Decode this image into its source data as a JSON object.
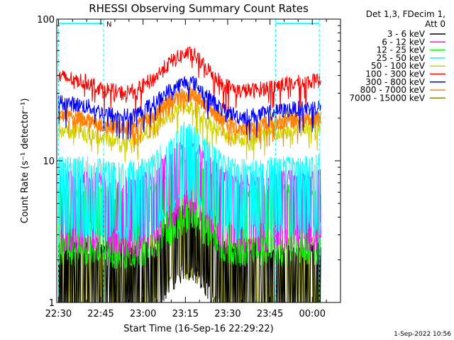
{
  "chart_data": {
    "type": "line",
    "title": "RHESSI Observing Summary Count Rates",
    "xlabel": "Start Time (16-Sep-16 22:29:22)",
    "ylabel": "Count Rate (s⁻¹ detector⁻¹)",
    "x_tick_labels": [
      "22:30",
      "22:45",
      "23:00",
      "23:15",
      "23:30",
      "23:45",
      "00:00"
    ],
    "x_tick_minutes": [
      0,
      15,
      30,
      45,
      60,
      75,
      90
    ],
    "x_range_minutes": [
      -0.6,
      100
    ],
    "y_scale": "log",
    "ylim": [
      1,
      100
    ],
    "y_tick_labels": [
      "1",
      "10",
      "100"
    ],
    "y_tick_values": [
      1,
      10,
      100
    ],
    "legend": {
      "header": [
        "Det 1,3, FDecim 1,",
        "Att 0"
      ],
      "placement": "top-right outside"
    },
    "series": [
      {
        "name": "3 - 6 keV",
        "color": "#000000",
        "t": [
          0,
          6,
          11,
          15,
          22,
          28,
          34,
          40,
          45,
          48,
          52,
          58,
          64,
          70,
          76,
          82,
          88,
          93
        ],
        "values": [
          1.5,
          1.5,
          1.5,
          1.5,
          1.5,
          1.5,
          1.5,
          2.5,
          3.0,
          3.0,
          2.3,
          1.5,
          1.5,
          1.5,
          1.5,
          1.5,
          1.5,
          1.5
        ]
      },
      {
        "name": "6 - 12 keV",
        "color": "#ff00ff",
        "t": [
          0,
          6,
          11,
          15,
          22,
          28,
          34,
          40,
          45,
          48,
          52,
          58,
          64,
          70,
          76,
          82,
          88,
          93
        ],
        "values": [
          4.8,
          4.7,
          4.7,
          4.6,
          4.3,
          4.4,
          5.0,
          6.8,
          8.3,
          8.2,
          6.6,
          5.0,
          4.5,
          4.6,
          4.8,
          4.8,
          4.8,
          4.9
        ]
      },
      {
        "name": "12 - 25 keV",
        "color": "#00ff00",
        "t": [
          0,
          6,
          11,
          15,
          22,
          28,
          34,
          40,
          45,
          48,
          52,
          58,
          64,
          70,
          76,
          82,
          88,
          93
        ],
        "values": [
          3.8,
          3.8,
          3.7,
          3.7,
          3.6,
          3.6,
          4.0,
          5.3,
          6.5,
          6.4,
          5.2,
          4.0,
          3.7,
          3.7,
          3.8,
          3.8,
          3.8,
          3.8
        ]
      },
      {
        "name": "25 - 50 keV",
        "color": "#00ffff",
        "t": [
          0,
          6,
          11,
          15,
          22,
          28,
          34,
          40,
          45,
          48,
          52,
          58,
          64,
          70,
          76,
          82,
          88,
          93
        ],
        "values": [
          6.0,
          6.0,
          5.9,
          5.8,
          5.5,
          5.6,
          6.3,
          8.6,
          10.8,
          10.6,
          8.4,
          6.2,
          5.7,
          5.8,
          6.0,
          6.0,
          6.1,
          6.2
        ]
      },
      {
        "name": "50 - 100 keV",
        "color": "#d2d200",
        "t": [
          0,
          6,
          11,
          15,
          22,
          28,
          34,
          40,
          45,
          48,
          52,
          58,
          64,
          70,
          76,
          82,
          88,
          93
        ],
        "values": [
          16.5,
          16.0,
          15.5,
          14.5,
          13.8,
          14.5,
          17.0,
          21.0,
          24.0,
          23.5,
          19.5,
          15.5,
          14.2,
          14.5,
          15.5,
          16.0,
          16.5,
          17.0
        ]
      },
      {
        "name": "100 - 300 keV",
        "color": "#ff0000",
        "t": [
          0,
          6,
          11,
          15,
          22,
          28,
          34,
          40,
          45,
          48,
          52,
          58,
          64,
          70,
          76,
          82,
          88,
          93
        ],
        "values": [
          39.0,
          37.5,
          35.5,
          32.5,
          30.0,
          31.5,
          38.0,
          50.0,
          57.0,
          56.0,
          46.0,
          35.0,
          31.0,
          31.5,
          33.5,
          35.0,
          36.0,
          37.0
        ]
      },
      {
        "name": "300 - 800 keV",
        "color": "#0000ff",
        "t": [
          0,
          6,
          11,
          15,
          22,
          28,
          34,
          40,
          45,
          48,
          52,
          58,
          64,
          70,
          76,
          82,
          88,
          93
        ],
        "values": [
          26.0,
          25.0,
          24.0,
          22.0,
          20.5,
          21.5,
          25.5,
          32.0,
          36.0,
          35.5,
          29.5,
          23.0,
          20.5,
          21.0,
          22.0,
          23.0,
          23.5,
          24.0
        ]
      },
      {
        "name": "800 - 7000 keV",
        "color": "#ff8000",
        "t": [
          0,
          6,
          11,
          15,
          22,
          28,
          34,
          40,
          45,
          48,
          52,
          58,
          64,
          70,
          76,
          82,
          88,
          93
        ],
        "values": [
          21.0,
          20.5,
          19.5,
          18.0,
          17.0,
          17.5,
          21.0,
          26.5,
          30.0,
          29.5,
          24.5,
          19.0,
          17.0,
          17.5,
          18.5,
          19.0,
          19.5,
          20.0
        ]
      },
      {
        "name": "7000 - 15000 keV",
        "color": "#808000",
        "t": [
          0,
          6,
          11,
          15,
          22,
          28,
          34,
          40,
          45,
          48,
          52,
          58,
          64,
          70,
          76,
          82,
          88,
          93
        ],
        "values": [
          1.6,
          1.6,
          1.6,
          1.6,
          1.6,
          1.6,
          1.7,
          2.6,
          3.0,
          3.0,
          2.4,
          1.6,
          1.6,
          1.6,
          1.6,
          1.6,
          1.6,
          1.6
        ]
      }
    ],
    "annotations": {
      "night_label": "N",
      "night_intervals_minutes": [
        [
          0,
          16
        ],
        [
          77,
          92.5
        ]
      ],
      "bar_y_value": 93,
      "bar_color": "#00ffff"
    },
    "timestamp": "1-Sep-2022 10:56"
  }
}
